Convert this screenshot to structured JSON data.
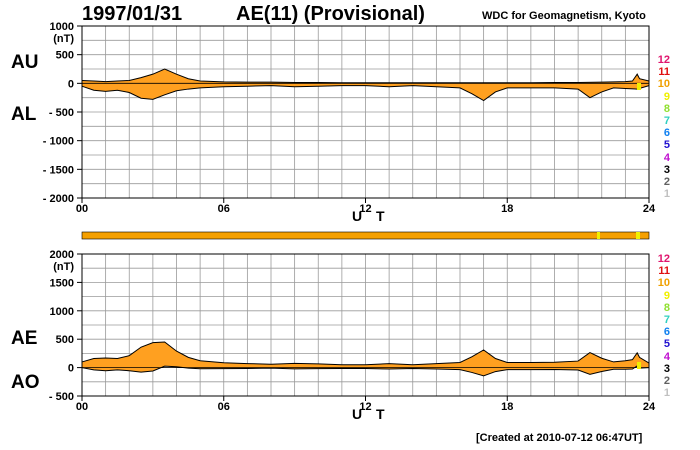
{
  "header": {
    "date": "1997/01/31",
    "title": "AE(11) (Provisional)",
    "organization": "WDC for Geomagnetism, Kyoto"
  },
  "footer": {
    "created": "[Created at 2010-07-12 06:47UT]"
  },
  "level_legend": {
    "labels": [
      "12",
      "11",
      "10",
      "9",
      "8",
      "7",
      "6",
      "5",
      "4",
      "3",
      "2",
      "1"
    ],
    "colors": [
      "#e0156e",
      "#e01010",
      "#f0a000",
      "#f0f000",
      "#90e030",
      "#30d0c0",
      "#1080f0",
      "#2010d0",
      "#c010d0",
      "#000000",
      "#606060",
      "#c0c0c0"
    ]
  },
  "chart_data": [
    {
      "type": "area",
      "name": "AU-AL",
      "series_labels": [
        "AU",
        "AL"
      ],
      "unit": "(nT)",
      "xlabel": "U T",
      "xlim": [
        0,
        24
      ],
      "x_ticks": [
        "00",
        "06",
        "12",
        "18",
        "24"
      ],
      "ylim": [
        -2000,
        1000
      ],
      "y_ticks": [
        {
          "v": 1000,
          "label": "1000"
        },
        {
          "v": 500,
          "label": "500"
        },
        {
          "v": 0,
          "label": "0"
        },
        {
          "v": -500,
          "label": "- 500"
        },
        {
          "v": -1000,
          "label": "- 1000"
        },
        {
          "v": -1500,
          "label": "- 1500"
        },
        {
          "v": -2000,
          "label": "- 2000"
        }
      ],
      "grid": true,
      "fill_color": "#ffa020",
      "upper_series": {
        "name": "AU",
        "points": [
          [
            0,
            50
          ],
          [
            0.5,
            40
          ],
          [
            1,
            30
          ],
          [
            1.5,
            40
          ],
          [
            2,
            50
          ],
          [
            2.5,
            100
          ],
          [
            3,
            160
          ],
          [
            3.5,
            250
          ],
          [
            4,
            160
          ],
          [
            4.5,
            80
          ],
          [
            5,
            40
          ],
          [
            6,
            25
          ],
          [
            7,
            20
          ],
          [
            8,
            20
          ],
          [
            9,
            15
          ],
          [
            10,
            15
          ],
          [
            11,
            10
          ],
          [
            12,
            10
          ],
          [
            13,
            10
          ],
          [
            14,
            10
          ],
          [
            15,
            10
          ],
          [
            16,
            10
          ],
          [
            16.5,
            10
          ],
          [
            17,
            10
          ],
          [
            17.5,
            10
          ],
          [
            18,
            10
          ],
          [
            19,
            10
          ],
          [
            20,
            15
          ],
          [
            21,
            15
          ],
          [
            22,
            20
          ],
          [
            23,
            30
          ],
          [
            23.3,
            40
          ],
          [
            23.5,
            160
          ],
          [
            23.6,
            80
          ],
          [
            24,
            40
          ]
        ]
      },
      "lower_series": {
        "name": "AL",
        "points": [
          [
            0,
            -50
          ],
          [
            0.5,
            -120
          ],
          [
            1,
            -140
          ],
          [
            1.5,
            -120
          ],
          [
            2,
            -160
          ],
          [
            2.5,
            -260
          ],
          [
            3,
            -280
          ],
          [
            3.5,
            -200
          ],
          [
            4,
            -130
          ],
          [
            4.5,
            -100
          ],
          [
            5,
            -80
          ],
          [
            6,
            -60
          ],
          [
            7,
            -50
          ],
          [
            8,
            -40
          ],
          [
            9,
            -60
          ],
          [
            10,
            -50
          ],
          [
            11,
            -40
          ],
          [
            12,
            -40
          ],
          [
            13,
            -60
          ],
          [
            14,
            -40
          ],
          [
            15,
            -60
          ],
          [
            16,
            -80
          ],
          [
            16.5,
            -180
          ],
          [
            17,
            -300
          ],
          [
            17.5,
            -150
          ],
          [
            18,
            -80
          ],
          [
            19,
            -80
          ],
          [
            20,
            -80
          ],
          [
            21,
            -100
          ],
          [
            21.5,
            -250
          ],
          [
            22,
            -150
          ],
          [
            22.5,
            -80
          ],
          [
            23,
            -90
          ],
          [
            23.5,
            -100
          ],
          [
            24,
            -40
          ]
        ]
      }
    },
    {
      "type": "area",
      "name": "AE-AO",
      "series_labels": [
        "AE",
        "AO"
      ],
      "unit": "(nT)",
      "xlabel": "U T",
      "xlim": [
        0,
        24
      ],
      "x_ticks": [
        "00",
        "06",
        "12",
        "18",
        "24"
      ],
      "ylim": [
        -500,
        2000
      ],
      "y_ticks": [
        {
          "v": 2000,
          "label": "2000"
        },
        {
          "v": 1500,
          "label": "1500"
        },
        {
          "v": 1000,
          "label": "1000"
        },
        {
          "v": 500,
          "label": "500"
        },
        {
          "v": 0,
          "label": "0"
        },
        {
          "v": -500,
          "label": "- 500"
        }
      ],
      "grid": true,
      "fill_color": "#ffa020",
      "upper_series": {
        "name": "AE",
        "points": [
          [
            0,
            100
          ],
          [
            0.5,
            160
          ],
          [
            1,
            170
          ],
          [
            1.5,
            160
          ],
          [
            2,
            210
          ],
          [
            2.5,
            360
          ],
          [
            3,
            440
          ],
          [
            3.5,
            450
          ],
          [
            4,
            290
          ],
          [
            4.5,
            180
          ],
          [
            5,
            120
          ],
          [
            6,
            85
          ],
          [
            7,
            70
          ],
          [
            8,
            60
          ],
          [
            9,
            75
          ],
          [
            10,
            65
          ],
          [
            11,
            50
          ],
          [
            12,
            50
          ],
          [
            13,
            70
          ],
          [
            14,
            50
          ],
          [
            15,
            70
          ],
          [
            16,
            90
          ],
          [
            16.5,
            190
          ],
          [
            17,
            310
          ],
          [
            17.5,
            160
          ],
          [
            18,
            90
          ],
          [
            19,
            90
          ],
          [
            20,
            95
          ],
          [
            21,
            115
          ],
          [
            21.5,
            265
          ],
          [
            22,
            165
          ],
          [
            22.5,
            100
          ],
          [
            23,
            120
          ],
          [
            23.3,
            140
          ],
          [
            23.5,
            260
          ],
          [
            23.6,
            180
          ],
          [
            24,
            80
          ]
        ]
      },
      "lower_series": {
        "name": "AO",
        "points": [
          [
            0,
            0
          ],
          [
            0.5,
            -40
          ],
          [
            1,
            -55
          ],
          [
            1.5,
            -40
          ],
          [
            2,
            -55
          ],
          [
            2.5,
            -80
          ],
          [
            3,
            -60
          ],
          [
            3.5,
            25
          ],
          [
            4,
            15
          ],
          [
            4.5,
            -10
          ],
          [
            5,
            -20
          ],
          [
            6,
            -18
          ],
          [
            7,
            -15
          ],
          [
            8,
            -10
          ],
          [
            9,
            -23
          ],
          [
            10,
            -18
          ],
          [
            11,
            -15
          ],
          [
            12,
            -15
          ],
          [
            13,
            -25
          ],
          [
            14,
            -15
          ],
          [
            15,
            -25
          ],
          [
            16,
            -35
          ],
          [
            16.5,
            -85
          ],
          [
            17,
            -145
          ],
          [
            17.5,
            -70
          ],
          [
            18,
            -35
          ],
          [
            19,
            -35
          ],
          [
            20,
            -33
          ],
          [
            21,
            -43
          ],
          [
            21.5,
            -118
          ],
          [
            22,
            -68
          ],
          [
            22.5,
            -30
          ],
          [
            23,
            -30
          ],
          [
            23.3,
            -25
          ],
          [
            23.5,
            30
          ],
          [
            23.6,
            -10
          ],
          [
            24,
            0
          ]
        ]
      }
    }
  ]
}
